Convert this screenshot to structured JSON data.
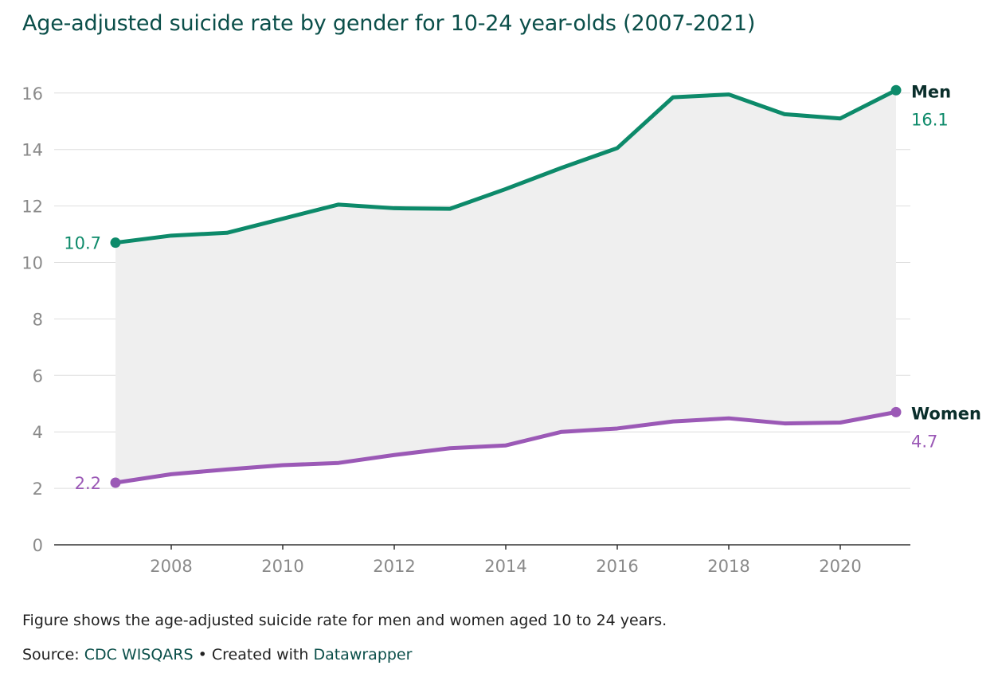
{
  "title": "Age-adjusted suicide rate by gender for 10-24 year-olds (2007-2021)",
  "notes": "Figure shows the age-adjusted suicide rate for men and women aged 10 to 24 years.",
  "source": {
    "prefix": "Source: ",
    "name": "CDC WISQARS",
    "separator": " • Created with ",
    "tool": "Datawrapper"
  },
  "chart_data": {
    "type": "line",
    "x": [
      2007,
      2008,
      2009,
      2010,
      2011,
      2012,
      2013,
      2014,
      2015,
      2016,
      2017,
      2018,
      2019,
      2020,
      2021
    ],
    "xticks": [
      "2008",
      "2010",
      "2012",
      "2014",
      "2016",
      "2018",
      "2020"
    ],
    "yticks": [
      "0",
      "2",
      "4",
      "6",
      "8",
      "10",
      "12",
      "14",
      "16"
    ],
    "ylim": [
      0,
      16
    ],
    "grid": true,
    "area_between_series": true,
    "series": [
      {
        "name": "Men",
        "color": "#0d8a6a",
        "values": [
          10.7,
          10.95,
          11.05,
          11.55,
          12.05,
          11.92,
          11.9,
          12.6,
          13.35,
          14.05,
          15.85,
          15.95,
          15.25,
          15.1,
          16.1
        ],
        "start_label": "10.7",
        "end_label": "16.1"
      },
      {
        "name": "Women",
        "color": "#9b59b6",
        "values": [
          2.2,
          2.5,
          2.67,
          2.82,
          2.9,
          3.18,
          3.42,
          3.52,
          4.0,
          4.12,
          4.37,
          4.48,
          4.3,
          4.33,
          4.7
        ],
        "start_label": "2.2",
        "end_label": "4.7"
      }
    ]
  }
}
